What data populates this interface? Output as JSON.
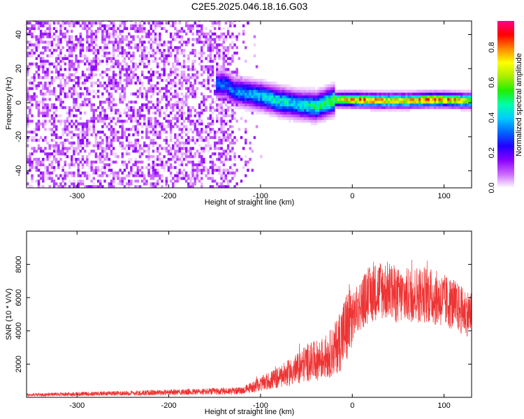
{
  "title": "C2E5.2025.046.18.16.G03",
  "chart_data": [
    {
      "type": "heatmap",
      "xlabel": "Height of straight line (km)",
      "ylabel": "Frequency (Hz)",
      "xlim": [
        -355,
        130
      ],
      "ylim": [
        -50,
        48
      ],
      "x_ticks": [
        -300,
        -200,
        -100,
        0,
        100
      ],
      "y_ticks": [
        -40,
        -20,
        0,
        20,
        40
      ],
      "colorbar": {
        "label": "Normalized spectral amplitude",
        "range": [
          0.0,
          0.95
        ],
        "ticks": [
          0.0,
          0.2,
          0.4,
          0.6,
          0.8
        ],
        "colormap": [
          "#ffffff",
          "#cc66ff",
          "#8800ff",
          "#2200ff",
          "#0066ff",
          "#00ccff",
          "#00ffaa",
          "#22ee00",
          "#aaee00",
          "#ffff00",
          "#ff8800",
          "#ff0000",
          "#ff0088"
        ]
      },
      "signal_center_hz": [
        [
          -140,
          10
        ],
        [
          -130,
          6
        ],
        [
          -120,
          5
        ],
        [
          -100,
          3
        ],
        [
          -80,
          0
        ],
        [
          -60,
          -2
        ],
        [
          -40,
          -3
        ],
        [
          -30,
          -1
        ],
        [
          -20,
          1
        ],
        [
          0,
          1
        ],
        [
          20,
          0.5
        ],
        [
          40,
          0.5
        ],
        [
          60,
          0.5
        ],
        [
          80,
          1
        ],
        [
          100,
          1
        ],
        [
          120,
          0.5
        ],
        [
          130,
          0.5
        ]
      ],
      "signal_peak_amplitude": [
        [
          -140,
          0.35
        ],
        [
          -120,
          0.4
        ],
        [
          -100,
          0.45
        ],
        [
          -80,
          0.5
        ],
        [
          -60,
          0.45
        ],
        [
          -40,
          0.55
        ],
        [
          -20,
          0.65
        ],
        [
          0,
          0.85
        ],
        [
          20,
          0.85
        ],
        [
          40,
          0.8
        ],
        [
          60,
          0.8
        ],
        [
          80,
          0.9
        ],
        [
          100,
          0.85
        ],
        [
          120,
          0.8
        ],
        [
          130,
          0.75
        ]
      ],
      "noise_region_x": [
        -355,
        -130
      ],
      "noise_amplitude": 0.1
    },
    {
      "type": "line",
      "xlabel": "Height of straight line (km)",
      "ylabel": "SNR (10 * V/V)",
      "xlim": [
        -355,
        130
      ],
      "ylim": [
        0,
        10000
      ],
      "x_ticks": [
        -300,
        -200,
        -100,
        0,
        100
      ],
      "y_ticks": [
        2000,
        4000,
        6000,
        8000
      ],
      "color": "#ee3333",
      "series": [
        {
          "x": [
            -355,
            -300,
            -250,
            -200,
            -150,
            -120,
            -100,
            -80,
            -60,
            -50,
            -40,
            -30,
            -20,
            -10,
            0,
            10,
            20,
            30,
            40,
            50,
            60,
            70,
            80,
            90,
            100,
            110,
            120,
            130
          ],
          "y": [
            150,
            200,
            250,
            300,
            350,
            400,
            800,
            1200,
            1700,
            2100,
            2200,
            2400,
            2800,
            3800,
            4800,
            5700,
            6200,
            6500,
            6400,
            6100,
            6100,
            6200,
            6200,
            6000,
            5800,
            5600,
            5200,
            5000
          ]
        }
      ]
    }
  ]
}
